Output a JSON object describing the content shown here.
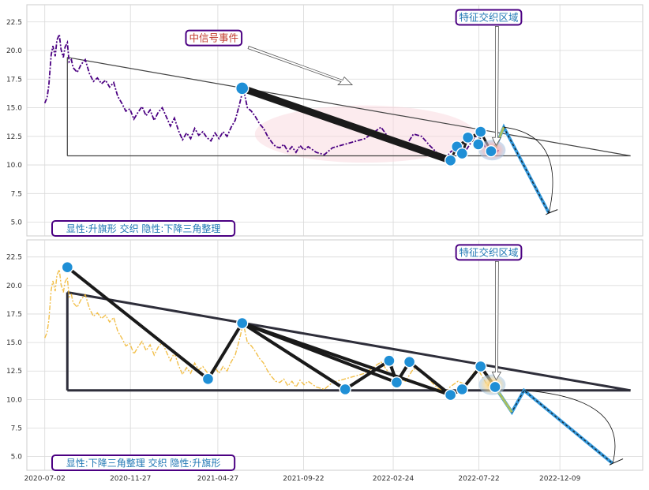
{
  "chart_data": [
    {
      "type": "line",
      "price_color": "#4b0082",
      "ylim": [
        3.8,
        24.0
      ],
      "yticks": [
        "5.0",
        "7.5",
        "10.0",
        "12.5",
        "15.0",
        "17.5",
        "20.0",
        "22.5"
      ],
      "price_series": [
        [
          "2020-07-02",
          15.4
        ],
        [
          "2020-07-06",
          15.9
        ],
        [
          "2020-07-09",
          17.0
        ],
        [
          "2020-07-13",
          19.6
        ],
        [
          "2020-07-16",
          20.4
        ],
        [
          "2020-07-20",
          19.5
        ],
        [
          "2020-07-23",
          20.9
        ],
        [
          "2020-07-27",
          21.4
        ],
        [
          "2020-07-30",
          20.1
        ],
        [
          "2020-08-03",
          19.4
        ],
        [
          "2020-08-06",
          20.3
        ],
        [
          "2020-08-10",
          20.7
        ],
        [
          "2020-08-13",
          19.0
        ],
        [
          "2020-08-17",
          19.2
        ],
        [
          "2020-08-20",
          18.5
        ],
        [
          "2020-08-27",
          18.1
        ],
        [
          "2020-09-03",
          18.8
        ],
        [
          "2020-09-10",
          19.2
        ],
        [
          "2020-09-17",
          18.0
        ],
        [
          "2020-09-24",
          17.3
        ],
        [
          "2020-10-01",
          17.6
        ],
        [
          "2020-10-08",
          17.1
        ],
        [
          "2020-10-15",
          17.4
        ],
        [
          "2020-10-22",
          16.8
        ],
        [
          "2020-10-29",
          17.2
        ],
        [
          "2020-11-05",
          16.0
        ],
        [
          "2020-11-12",
          15.4
        ],
        [
          "2020-11-19",
          14.7
        ],
        [
          "2020-11-26",
          14.9
        ],
        [
          "2020-12-03",
          14.0
        ],
        [
          "2020-12-10",
          14.6
        ],
        [
          "2020-12-17",
          15.1
        ],
        [
          "2020-12-24",
          14.3
        ],
        [
          "2020-12-31",
          14.8
        ],
        [
          "2021-01-07",
          13.9
        ],
        [
          "2021-01-14",
          14.6
        ],
        [
          "2021-01-21",
          15.0
        ],
        [
          "2021-01-28",
          14.2
        ],
        [
          "2021-02-04",
          13.4
        ],
        [
          "2021-02-11",
          14.1
        ],
        [
          "2021-02-18",
          13.0
        ],
        [
          "2021-02-25",
          12.2
        ],
        [
          "2021-03-04",
          12.8
        ],
        [
          "2021-03-11",
          12.3
        ],
        [
          "2021-03-18",
          13.2
        ],
        [
          "2021-03-25",
          12.6
        ],
        [
          "2021-04-01",
          12.9
        ],
        [
          "2021-04-08",
          12.4
        ],
        [
          "2021-04-15",
          12.1
        ],
        [
          "2021-04-22",
          12.8
        ],
        [
          "2021-04-29",
          12.3
        ],
        [
          "2021-05-06",
          12.9
        ],
        [
          "2021-05-13",
          12.5
        ],
        [
          "2021-05-20",
          13.3
        ],
        [
          "2021-05-27",
          13.9
        ],
        [
          "2021-06-03",
          15.2
        ],
        [
          "2021-06-10",
          16.7
        ],
        [
          "2021-06-17",
          15.0
        ],
        [
          "2021-06-24",
          14.7
        ],
        [
          "2021-07-01",
          14.2
        ],
        [
          "2021-07-08",
          13.6
        ],
        [
          "2021-07-15",
          13.2
        ],
        [
          "2021-07-22",
          12.5
        ],
        [
          "2021-07-29",
          12.0
        ],
        [
          "2021-08-05",
          11.6
        ],
        [
          "2021-08-12",
          11.5
        ],
        [
          "2021-08-19",
          11.8
        ],
        [
          "2021-08-26",
          11.2
        ],
        [
          "2021-09-02",
          11.6
        ],
        [
          "2021-09-09",
          11.1
        ],
        [
          "2021-09-16",
          11.7
        ],
        [
          "2021-09-23",
          11.3
        ],
        [
          "2021-09-30",
          11.6
        ],
        [
          "2021-10-14",
          11.1
        ],
        [
          "2021-10-28",
          10.9
        ],
        [
          "2021-11-11",
          11.5
        ],
        [
          "2021-11-25",
          11.7
        ],
        [
          "2021-12-09",
          11.9
        ],
        [
          "2021-12-23",
          12.1
        ],
        [
          "2022-01-06",
          12.3
        ],
        [
          "2022-01-20",
          12.8
        ],
        [
          "2022-02-03",
          13.3
        ],
        [
          "2022-02-17",
          12.3
        ],
        [
          "2022-03-03",
          11.8
        ],
        [
          "2022-03-17",
          11.6
        ],
        [
          "2022-03-31",
          12.7
        ],
        [
          "2022-04-14",
          12.5
        ],
        [
          "2022-04-28",
          11.7
        ],
        [
          "2022-05-12",
          11.0
        ],
        [
          "2022-05-26",
          10.6
        ],
        [
          "2022-06-02",
          11.1
        ],
        [
          "2022-06-16",
          11.6
        ],
        [
          "2022-06-30",
          11.3
        ],
        [
          "2022-07-14",
          12.4
        ],
        [
          "2022-07-21",
          12.6
        ],
        [
          "2022-07-28",
          12.0
        ],
        [
          "2022-08-04",
          11.4
        ],
        [
          "2022-08-11",
          11.1
        ],
        [
          "2022-08-18",
          10.9
        ],
        [
          "2022-08-25",
          11.3
        ]
      ],
      "triangle": {
        "upper": [
          [
            "2020-08-10",
            19.4
          ],
          [
            "2023-04-10",
            10.8
          ]
        ],
        "lower": [
          [
            "2020-08-10",
            10.8
          ],
          [
            "2023-04-10",
            10.8
          ]
        ],
        "vertical": [
          [
            "2020-08-10",
            19.4
          ],
          [
            "2020-08-10",
            10.8
          ]
        ]
      },
      "flag_pivots": [
        [
          "2021-06-08",
          16.7
        ],
        [
          "2022-06-03",
          10.4
        ],
        [
          "2022-06-14",
          11.6
        ],
        [
          "2022-06-23",
          11.0
        ],
        [
          "2022-07-03",
          12.4
        ],
        [
          "2022-07-21",
          11.8
        ],
        [
          "2022-07-25",
          12.9
        ],
        [
          "2022-08-12",
          11.2
        ]
      ],
      "flag_lines": [
        {
          "from": [
            "2021-06-08",
            16.7
          ],
          "to": [
            "2022-06-03",
            10.4
          ]
        },
        {
          "from": [
            "2022-06-14",
            11.6
          ],
          "to": [
            "2022-07-25",
            12.9
          ]
        }
      ],
      "projection": [
        [
          "2022-08-15",
          11.0
        ],
        [
          "2022-09-03",
          13.3
        ],
        [
          "2022-11-20",
          5.8
        ]
      ],
      "bracket": [
        [
          "2022-11-20",
          5.8
        ],
        [
          "2022-12-05",
          6.1
        ]
      ],
      "event_marker": {
        "date": "2022-08-14",
        "value": 11.3
      },
      "event_ellipse": {
        "center": [
          "2022-01-06",
          12.7
        ],
        "rx_days": 190,
        "ry": 2.5
      },
      "annotations": [
        {
          "id": "signal",
          "text": "中信号事件",
          "at": [
            "2021-04-20",
            21.1
          ],
          "color": "#c0392b"
        },
        {
          "id": "cross",
          "text": "特征交织区域",
          "at": [
            "2022-08-08",
            22.9
          ],
          "color": "#1f77b4"
        },
        {
          "id": "pattern",
          "text": "显性:升旗形 交织 隐性:下降三角整理",
          "at": [
            "2020-10-24",
            4.0
          ],
          "color": "#1f77b4"
        }
      ]
    },
    {
      "type": "line",
      "price_color": "#f0b429",
      "ylim": [
        3.8,
        24.0
      ],
      "yticks": [
        "5.0",
        "7.5",
        "10.0",
        "12.5",
        "15.0",
        "17.5",
        "20.0",
        "22.5"
      ],
      "xticks": [
        "2020-07-02",
        "2020-11-27",
        "2021-04-27",
        "2021-09-22",
        "2022-02-24",
        "2022-07-22",
        "2022-12-09"
      ],
      "triangle": {
        "upper": [
          [
            "2020-08-10",
            19.4
          ],
          [
            "2023-04-10",
            10.8
          ]
        ],
        "lower": [
          [
            "2020-08-10",
            10.8
          ],
          [
            "2023-04-10",
            10.8
          ]
        ],
        "vertical": [
          [
            "2020-08-10",
            19.4
          ],
          [
            "2020-08-10",
            10.8
          ]
        ]
      },
      "pivots": [
        [
          "2020-08-10",
          21.6
        ],
        [
          "2021-04-10",
          11.8
        ],
        [
          "2021-06-08",
          16.7
        ],
        [
          "2021-12-03",
          10.9
        ],
        [
          "2022-02-17",
          13.4
        ],
        [
          "2022-03-02",
          11.5
        ],
        [
          "2022-03-24",
          13.3
        ],
        [
          "2022-06-03",
          10.4
        ],
        [
          "2022-06-23",
          10.9
        ],
        [
          "2022-07-25",
          12.9
        ],
        [
          "2022-08-19",
          11.1
        ]
      ],
      "zigzag": [
        [
          "2020-08-10",
          21.6
        ],
        [
          "2021-04-10",
          11.8
        ],
        [
          "2021-06-08",
          16.7
        ],
        [
          "2021-12-03",
          10.9
        ],
        [
          "2022-02-17",
          13.4
        ],
        [
          "2022-03-02",
          11.5
        ],
        [
          "2022-03-24",
          13.3
        ],
        [
          "2022-06-03",
          10.4
        ],
        [
          "2022-06-23",
          10.9
        ],
        [
          "2022-07-25",
          12.9
        ],
        [
          "2022-08-19",
          11.1
        ]
      ],
      "fan_from": [
        "2021-06-08",
        16.7
      ],
      "fan_to": [
        [
          "2021-12-03",
          10.9
        ],
        [
          "2022-03-02",
          11.5
        ],
        [
          "2022-06-03",
          10.4
        ]
      ],
      "projection": [
        [
          "2022-08-19",
          11.1
        ],
        [
          "2022-09-17",
          8.9
        ],
        [
          "2022-10-08",
          10.8
        ],
        [
          "2023-03-10",
          4.4
        ]
      ],
      "bracket": [
        [
          "2023-03-10",
          4.4
        ],
        [
          "2023-03-28",
          4.8
        ]
      ],
      "event_marker": {
        "date": "2022-08-14",
        "value": 11.3
      },
      "annotations": [
        {
          "id": "cross",
          "text": "特征交织区域",
          "at": [
            "2022-08-08",
            22.9
          ],
          "color": "#1f77b4"
        },
        {
          "id": "pattern",
          "text": "显性:下降三角整理 交织 隐性:升旗形",
          "at": [
            "2020-10-24",
            4.0
          ],
          "color": "#1f77b4"
        }
      ]
    }
  ]
}
